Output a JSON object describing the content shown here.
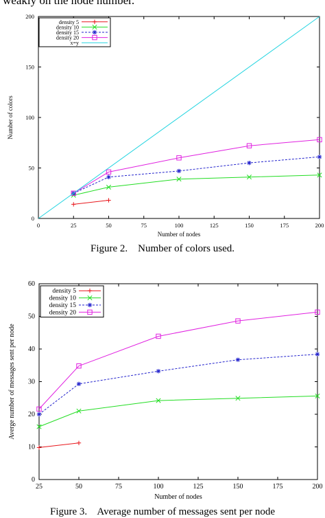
{
  "page_top_text": "weakly on the node number.",
  "captions": [
    "Figure 2.    Number of colors used.",
    "Figure 3.    Average number of messages sent per node"
  ],
  "chart_data": [
    {
      "type": "line",
      "xlabel": "Number of nodes",
      "ylabel": "Number of colors",
      "xlim": [
        0,
        200
      ],
      "ylim": [
        0,
        200
      ],
      "xticks": [
        0,
        25,
        50,
        75,
        100,
        125,
        150,
        175,
        200
      ],
      "yticks": [
        0,
        50,
        100,
        150,
        200
      ],
      "legend_position": "top-left",
      "series": [
        {
          "name": "density 5",
          "color": "#e8161b",
          "marker": "plus",
          "dash": "solid",
          "x": [
            25,
            50
          ],
          "y": [
            14,
            18
          ]
        },
        {
          "name": "density 10",
          "color": "#22dd22",
          "marker": "x",
          "dash": "solid",
          "x": [
            25,
            50,
            100,
            150,
            200
          ],
          "y": [
            23,
            31,
            39,
            41,
            43
          ]
        },
        {
          "name": "density 15",
          "color": "#2222cc",
          "marker": "star",
          "dash": "dashed",
          "x": [
            25,
            50,
            100,
            150,
            200
          ],
          "y": [
            25,
            41,
            47,
            55,
            61
          ]
        },
        {
          "name": "density 20",
          "color": "#e020e0",
          "marker": "square",
          "dash": "solid",
          "x": [
            25,
            50,
            100,
            150,
            200
          ],
          "y": [
            25,
            46,
            60,
            72,
            78
          ]
        },
        {
          "name": "x=y",
          "color": "#22d4e0",
          "marker": "none",
          "dash": "solid",
          "x": [
            0,
            200
          ],
          "y": [
            0,
            200
          ]
        }
      ]
    },
    {
      "type": "line",
      "xlabel": "Number of nodes",
      "ylabel": "Averge number of messages sent per node",
      "xlim": [
        25,
        200
      ],
      "ylim": [
        0,
        60
      ],
      "xticks": [
        25,
        50,
        75,
        100,
        125,
        150,
        175,
        200
      ],
      "yticks": [
        0,
        10,
        20,
        30,
        40,
        50,
        60
      ],
      "legend_position": "top-left",
      "series": [
        {
          "name": "density 5",
          "color": "#e8161b",
          "marker": "plus",
          "dash": "solid",
          "x": [
            25,
            50
          ],
          "y": [
            9.8,
            11.2
          ]
        },
        {
          "name": "density 10",
          "color": "#22dd22",
          "marker": "x",
          "dash": "solid",
          "x": [
            25,
            50,
            100,
            150,
            200
          ],
          "y": [
            16.2,
            21.0,
            24.2,
            24.9,
            25.6
          ]
        },
        {
          "name": "density 15",
          "color": "#2222cc",
          "marker": "star",
          "dash": "dashed",
          "x": [
            25,
            50,
            100,
            150,
            200
          ],
          "y": [
            20.0,
            29.3,
            33.2,
            36.7,
            38.4
          ]
        },
        {
          "name": "density 20",
          "color": "#e020e0",
          "marker": "square",
          "dash": "solid",
          "x": [
            25,
            50,
            100,
            150,
            200
          ],
          "y": [
            21.6,
            34.8,
            43.9,
            48.6,
            51.3
          ]
        }
      ]
    }
  ]
}
